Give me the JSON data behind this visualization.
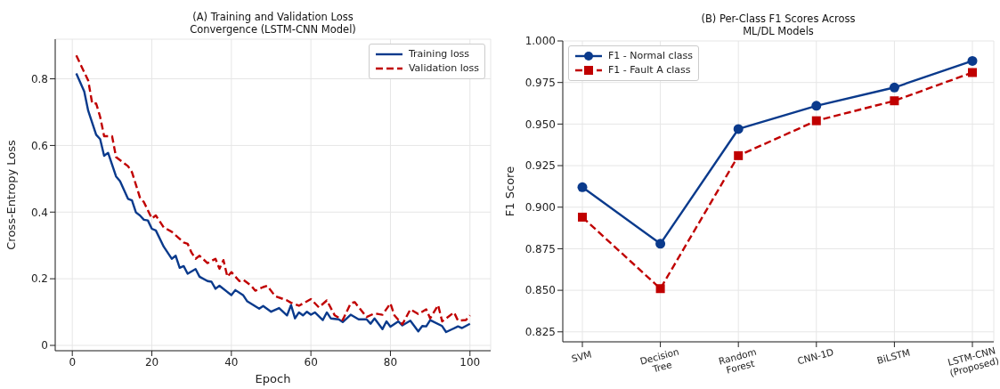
{
  "chart_data": [
    {
      "type": "line",
      "title": "(A) Training and Validation Loss\nConvergence (LSTM-CNN Model)",
      "xlabel": "Epoch",
      "ylabel": "Cross-Entropy Loss",
      "xlim": [
        -4.3,
        105.2
      ],
      "ylim": [
        -0.016,
        0.919
      ],
      "xticks": [
        0,
        20,
        40,
        60,
        80,
        100
      ],
      "yticks": [
        0.0,
        0.2,
        0.4,
        0.6,
        0.8
      ],
      "grid": true,
      "legend": "top right",
      "series": [
        {
          "name": "Training loss",
          "color": "#0a3a8c",
          "line_style": "solid",
          "x": [
            1,
            3,
            4,
            6,
            7,
            8,
            9,
            11,
            12,
            14,
            15,
            16,
            17,
            18,
            19,
            20,
            21,
            23,
            25,
            26,
            27,
            28,
            29,
            31,
            32,
            34,
            35,
            36,
            37,
            40,
            41,
            43,
            44,
            47,
            48,
            50,
            52,
            54,
            55,
            56,
            57,
            58,
            59,
            60,
            61,
            63,
            64,
            65,
            67,
            68,
            70,
            72,
            74,
            75,
            76,
            78,
            79,
            80,
            82,
            83,
            85,
            87,
            88,
            89,
            90,
            93,
            94,
            97,
            98,
            100
          ],
          "values": [
            0.816,
            0.762,
            0.704,
            0.632,
            0.619,
            0.569,
            0.578,
            0.507,
            0.493,
            0.44,
            0.435,
            0.399,
            0.39,
            0.377,
            0.375,
            0.35,
            0.345,
            0.296,
            0.26,
            0.269,
            0.233,
            0.238,
            0.215,
            0.229,
            0.206,
            0.193,
            0.191,
            0.17,
            0.179,
            0.151,
            0.166,
            0.15,
            0.132,
            0.11,
            0.118,
            0.101,
            0.112,
            0.09,
            0.121,
            0.081,
            0.099,
            0.09,
            0.101,
            0.092,
            0.099,
            0.076,
            0.099,
            0.081,
            0.078,
            0.07,
            0.092,
            0.078,
            0.078,
            0.065,
            0.081,
            0.049,
            0.072,
            0.056,
            0.072,
            0.06,
            0.074,
            0.042,
            0.058,
            0.057,
            0.076,
            0.058,
            0.04,
            0.057,
            0.052,
            0.065
          ]
        },
        {
          "name": "Validation loss",
          "color": "#c00000",
          "line_style": "dashed",
          "x": [
            1,
            3,
            4,
            5,
            6,
            7,
            8,
            10,
            11,
            13,
            14,
            15,
            17,
            18,
            20,
            21,
            23,
            25,
            28,
            29,
            30,
            31,
            32,
            34,
            36,
            37,
            38,
            39,
            40,
            42,
            43,
            45,
            46,
            48,
            49,
            51,
            54,
            55,
            57,
            60,
            62,
            64,
            66,
            68,
            70,
            71,
            74,
            76,
            78,
            80,
            81,
            83,
            85,
            87,
            89,
            90,
            92,
            93,
            96,
            97,
            99,
            100
          ],
          "values": [
            0.87,
            0.82,
            0.795,
            0.726,
            0.726,
            0.686,
            0.628,
            0.628,
            0.565,
            0.547,
            0.538,
            0.52,
            0.444,
            0.43,
            0.381,
            0.39,
            0.354,
            0.341,
            0.309,
            0.305,
            0.278,
            0.26,
            0.269,
            0.247,
            0.26,
            0.23,
            0.256,
            0.206,
            0.22,
            0.193,
            0.197,
            0.179,
            0.164,
            0.175,
            0.179,
            0.148,
            0.135,
            0.128,
            0.119,
            0.139,
            0.114,
            0.135,
            0.09,
            0.076,
            0.126,
            0.13,
            0.085,
            0.096,
            0.092,
            0.126,
            0.09,
            0.063,
            0.108,
            0.094,
            0.108,
            0.081,
            0.121,
            0.072,
            0.099,
            0.074,
            0.076,
            0.09
          ]
        }
      ]
    },
    {
      "type": "line",
      "title": "(B) Per-Class F1 Scores Across\nML/DL Models",
      "ylabel": "F1 Score",
      "categories": [
        "SVM",
        "Decision Tree",
        "Random Forest",
        "CNN-1D",
        "BiLSTM",
        "LSTM-CNN (Proposed)"
      ],
      "ylim": [
        0.819,
        1.0
      ],
      "yticks": [
        {
          "value": 0.825,
          "label": "0.825"
        },
        {
          "value": 0.85,
          "label": "0.850"
        },
        {
          "value": 0.875,
          "label": "0.875"
        },
        {
          "value": 0.9,
          "label": "0.900"
        },
        {
          "value": 0.925,
          "label": "0.925"
        },
        {
          "value": 0.95,
          "label": "0.950"
        },
        {
          "value": 0.975,
          "label": "0.975"
        },
        {
          "value": 1.0,
          "label": "1.000"
        }
      ],
      "grid": true,
      "legend": "top left",
      "series": [
        {
          "name": "F1 - Normal class",
          "color": "#0a3a8c",
          "marker": "circle",
          "line_style": "solid",
          "values": [
            0.912,
            0.878,
            0.947,
            0.961,
            0.972,
            0.988
          ]
        },
        {
          "name": "F1 - Fault A class",
          "color": "#c00000",
          "marker": "square",
          "line_style": "dashed",
          "values": [
            0.894,
            0.851,
            0.931,
            0.952,
            0.964,
            0.981
          ]
        }
      ]
    }
  ]
}
